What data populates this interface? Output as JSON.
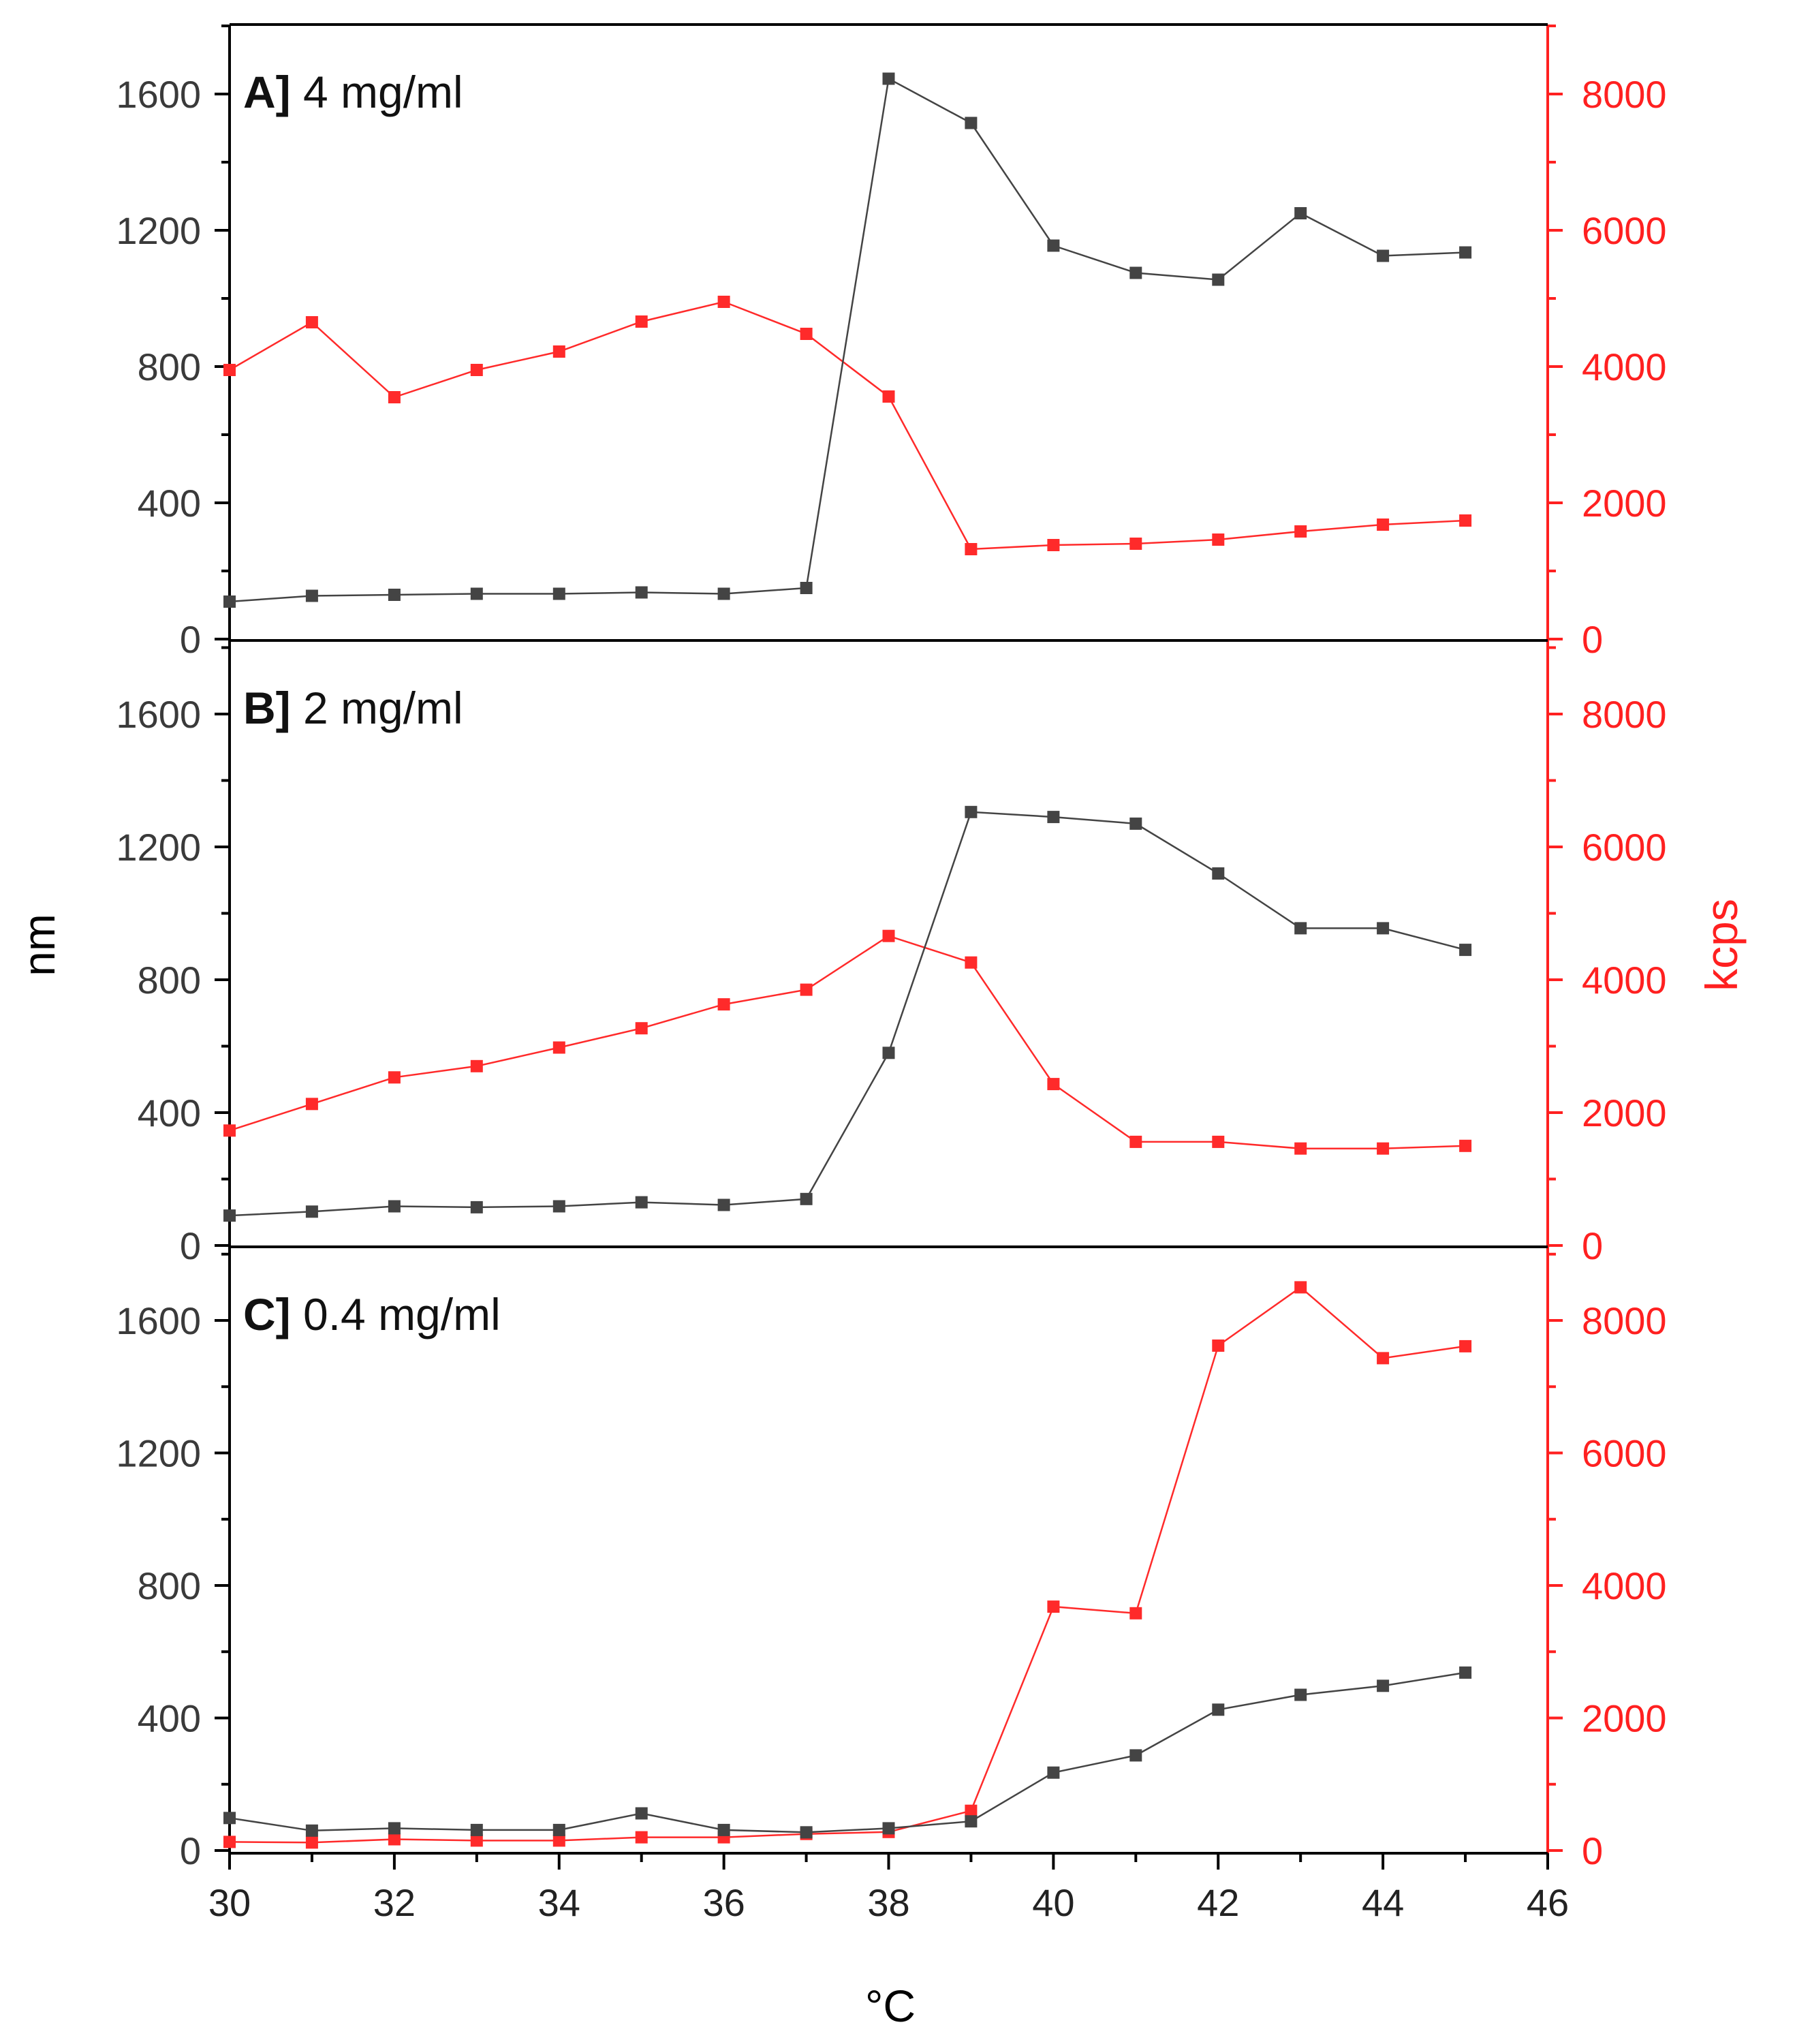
{
  "colors": {
    "size_series": "#444444",
    "count_series": "#ff2a2a",
    "axis": "#000000",
    "right_axis": "#ff2020"
  },
  "chart_data": {
    "type": "line",
    "xlabel": "°C",
    "ylabel_left": "nm",
    "ylabel_right": "kcps",
    "xlim": [
      30,
      46
    ],
    "xticks": [
      30,
      32,
      34,
      36,
      38,
      40,
      42,
      44,
      46
    ],
    "ylim_left": [
      0,
      1800
    ],
    "yticks_left": [
      0,
      400,
      800,
      1200,
      1600
    ],
    "ylim_right": [
      0,
      9000
    ],
    "yticks_right": [
      0,
      2000,
      4000,
      6000,
      8000
    ],
    "x": [
      30,
      31,
      32,
      33,
      34,
      35,
      36,
      37,
      38,
      39,
      40,
      41,
      42,
      43,
      44,
      45
    ],
    "panels": [
      {
        "letter": "A]",
        "concentration": "4 mg/ml",
        "series": [
          {
            "name": "nm",
            "axis": "left",
            "values": [
              110,
              127,
              130,
              133,
              133,
              137,
              133,
              150,
              1645,
              1515,
              1155,
              1075,
              1055,
              1250,
              1125,
              1135
            ]
          },
          {
            "name": "kcps",
            "axis": "right",
            "values": [
              3950,
              4650,
              3550,
              3950,
              4220,
              4660,
              4950,
              4480,
              3560,
              1320,
              1380,
              1400,
              1460,
              1580,
              1680,
              1740
            ]
          }
        ]
      },
      {
        "letter": "B]",
        "concentration": "2 mg/ml",
        "series": [
          {
            "name": "nm",
            "axis": "left",
            "values": [
              90,
              102,
              118,
              115,
              118,
              130,
              122,
              140,
              580,
              1305,
              1290,
              1270,
              1120,
              955,
              955,
              890
            ]
          },
          {
            "name": "kcps",
            "axis": "right",
            "values": [
              1730,
              2130,
              2530,
              2700,
              2980,
              3270,
              3630,
              3850,
              4660,
              4260,
              2430,
              1560,
              1560,
              1460,
              1460,
              1500
            ]
          }
        ]
      },
      {
        "letter": "C]",
        "concentration": "0.4 mg/ml",
        "series": [
          {
            "name": "nm",
            "axis": "left",
            "values": [
              98,
              60,
              67,
              62,
              62,
              112,
              62,
              55,
              67,
              88,
              235,
              287,
              425,
              470,
              497,
              537
            ]
          },
          {
            "name": "kcps",
            "axis": "right",
            "values": [
              130,
              120,
              170,
              150,
              150,
              200,
              200,
              250,
              280,
              600,
              3680,
              3580,
              7620,
              8500,
              7430,
              7610
            ]
          }
        ]
      }
    ]
  }
}
